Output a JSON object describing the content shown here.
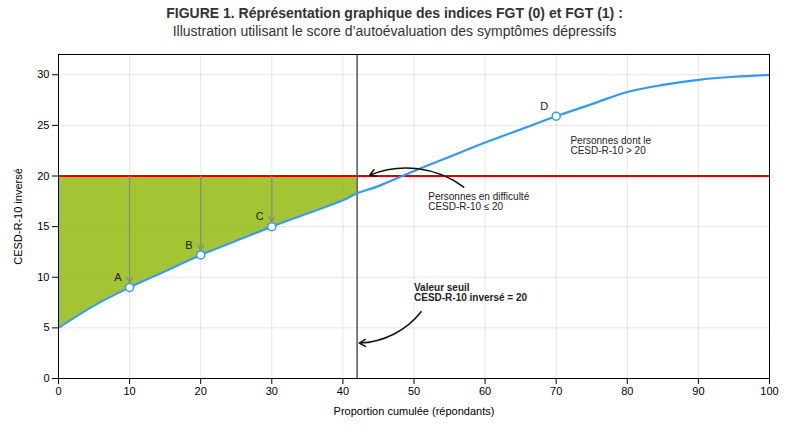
{
  "chart_data": {
    "type": "line",
    "title": "FIGURE 1. Réprésentation graphique des indices FGT (0) et FGT (1) :",
    "subtitle": "Illustration utilisant le score d’autoévaluation des symptômes dépressifs",
    "xlabel": "Proportion cumulée (répondants)",
    "ylabel": "CESD-R-10 inversé",
    "x": [
      0,
      5,
      10,
      15,
      20,
      25,
      30,
      35,
      40,
      42,
      45,
      50,
      55,
      60,
      65,
      70,
      75,
      80,
      85,
      90,
      95,
      100
    ],
    "series": [
      {
        "color": "#3399ff",
        "values": [
          5.0,
          7.2,
          9.0,
          10.6,
          12.2,
          13.6,
          15.0,
          16.3,
          17.6,
          18.3,
          19.0,
          20.5,
          21.9,
          23.3,
          24.6,
          25.9,
          27.1,
          28.3,
          29.0,
          29.5,
          29.8,
          30.0
        ]
      }
    ],
    "xlim": [
      0,
      100
    ],
    "ylim": [
      0,
      32
    ],
    "xticks": [
      0,
      10,
      20,
      30,
      40,
      50,
      60,
      70,
      80,
      90,
      100
    ],
    "yticks": [
      0,
      5,
      10,
      15,
      20,
      25,
      30
    ],
    "grid": true,
    "hline": {
      "y": 20,
      "color": "#dd0000"
    },
    "vline": {
      "x": 42,
      "color": "#555555"
    },
    "area": {
      "color": "#8db600"
    },
    "points": [
      {
        "label": "A",
        "x": 10,
        "y": 9.0
      },
      {
        "label": "B",
        "x": 20,
        "y": 12.2
      },
      {
        "label": "C",
        "x": 30,
        "y": 15.0
      },
      {
        "label": "D",
        "x": 70,
        "y": 25.9
      }
    ],
    "arrows": {
      "color": "#888888",
      "to": [
        "A",
        "B",
        "C"
      ]
    },
    "annotations": [
      {
        "text": "Personnes dont le\nCESD-R-10 > 20"
      },
      {
        "text": "Personnes en difficulté\nCESD-R-10 ≤ 20"
      },
      {
        "text": "Valeur seuil\nCESD-R-10 inversé = 20"
      }
    ]
  }
}
